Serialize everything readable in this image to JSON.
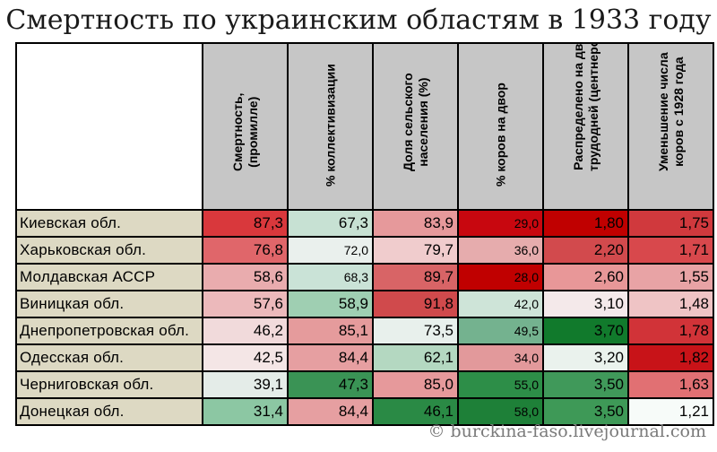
{
  "title": "Смертность по украинским областям в 1933 году",
  "credit": "© burckina-faso.livejournal.com",
  "chart_data": {
    "type": "table",
    "columns": [
      [
        "Смертность,",
        "(промилле)"
      ],
      [
        "% коллективизации"
      ],
      [
        "Доля сельского",
        "населения (%)"
      ],
      [
        "% коров на двор"
      ],
      [
        "Распределено на двор",
        "трудодней (центнеров)"
      ],
      [
        "Уменьшение числа",
        "коров с 1928 года"
      ]
    ],
    "rows": [
      {
        "region": "Киевская обл.",
        "values": [
          "87,3",
          "67,3",
          "83,9",
          "29,0",
          "1,80",
          "1,75"
        ]
      },
      {
        "region": "Харьковская обл.",
        "values": [
          "76,8",
          "72,0",
          "79,7",
          "36,0",
          "2,20",
          "1,71"
        ]
      },
      {
        "region": "Молдавская АССР",
        "values": [
          "58,6",
          "68,3",
          "89,7",
          "28,0",
          "2,60",
          "1,55"
        ]
      },
      {
        "region": "Виницкая обл.",
        "values": [
          "57,6",
          "58,9",
          "91,8",
          "42,0",
          "3,10",
          "1,48"
        ]
      },
      {
        "region": "Днепропетровская обл.",
        "values": [
          "46,2",
          "85,1",
          "73,5",
          "49,5",
          "3,70",
          "1,78"
        ]
      },
      {
        "region": "Одесская обл.",
        "values": [
          "42,5",
          "84,4",
          "62,1",
          "34,0",
          "3,20",
          "1,82"
        ]
      },
      {
        "region": "Черниговская обл.",
        "values": [
          "39,1",
          "47,3",
          "85,0",
          "55,0",
          "3,50",
          "1,63"
        ]
      },
      {
        "region": "Донецкая обл.",
        "values": [
          "31,4",
          "84,4",
          "46,1",
          "58,0",
          "3,50",
          "1,21"
        ]
      }
    ],
    "small_font_cells": [
      [
        0,
        3
      ],
      [
        1,
        1
      ],
      [
        1,
        3
      ],
      [
        2,
        1
      ],
      [
        2,
        3
      ],
      [
        3,
        3
      ],
      [
        4,
        3
      ],
      [
        5,
        3
      ],
      [
        6,
        3
      ],
      [
        7,
        3
      ]
    ],
    "cell_colors": [
      [
        "#d9383c",
        "#c7e1d3",
        "#e6999b",
        "#c8070f",
        "#c00000",
        "#d0393d"
      ],
      [
        "#e0666a",
        "#eaf0ed",
        "#f0cccd",
        "#e6acad",
        "#d24a4d",
        "#d8484c"
      ],
      [
        "#e9acae",
        "#cae3d7",
        "#d86466",
        "#c00000",
        "#e89798",
        "#e8a3a5"
      ],
      [
        "#ecb9bb",
        "#9fcfb2",
        "#d04a4c",
        "#cee4d8",
        "#f4e9ea",
        "#efc4c5"
      ],
      [
        "#f1dadb",
        "#e59b9c",
        "#e8f0ec",
        "#74b28f",
        "#117a2c",
        "#d13338"
      ],
      [
        "#f4e6e6",
        "#e69fa1",
        "#b4d8c1",
        "#e2999b",
        "#eaf2ed",
        "#c81318"
      ],
      [
        "#e4ece8",
        "#3a9355",
        "#e6999b",
        "#2d8e48",
        "#40995a",
        "#e17073"
      ],
      [
        "#8cc7a3",
        "#e69fa1",
        "#2a8a45",
        "#1e8038",
        "#3e9957",
        "#f7fbf9"
      ]
    ]
  }
}
